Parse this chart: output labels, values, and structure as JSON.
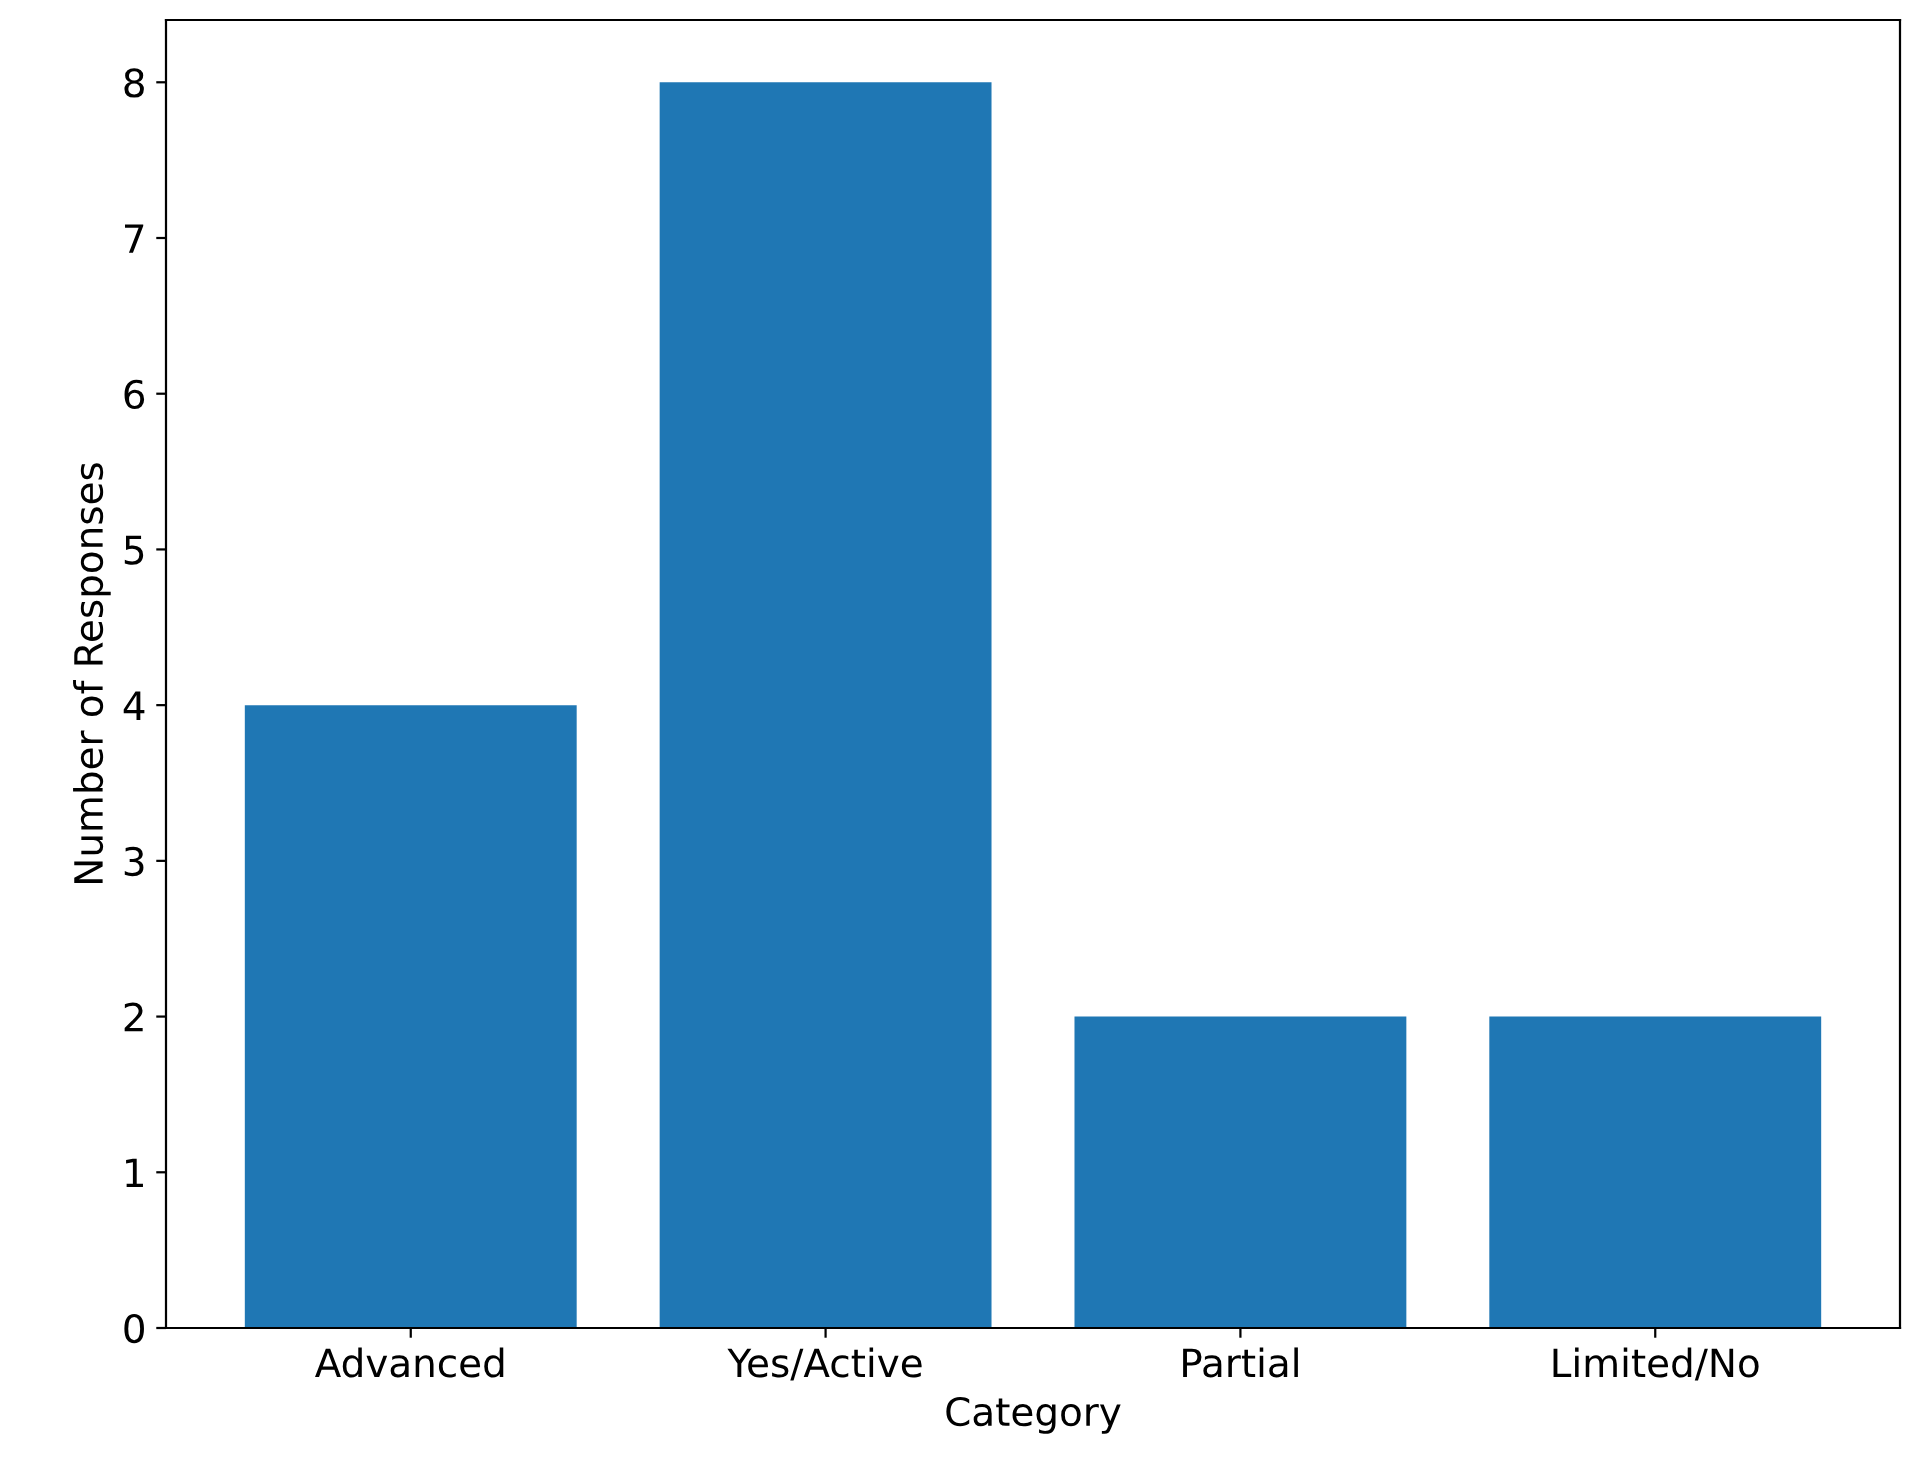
{
  "chart_data": {
    "type": "bar",
    "xlabel": "Category",
    "ylabel": "Number of Responses",
    "categories": [
      "Advanced",
      "Yes/Active",
      "Partial",
      "Limited/No"
    ],
    "values": [
      4,
      8,
      2,
      2
    ],
    "color": "#1f77b4",
    "ylim": [
      0,
      8.4
    ],
    "yticks": [
      0,
      1,
      2,
      3,
      4,
      5,
      6,
      7,
      8
    ],
    "grid": false,
    "legend": false
  }
}
